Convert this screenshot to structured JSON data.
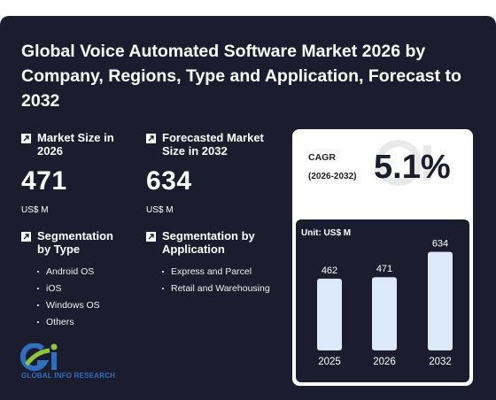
{
  "title": "Global Voice Automated Software Market 2026 by Company, Regions, Type and Application, Forecast to 2032",
  "market_size": {
    "label": "Market Size in 2026",
    "value": "471",
    "unit": "US$ M"
  },
  "forecast_size": {
    "label": "Forecasted Market Size in 2032",
    "value": "634",
    "unit": "US$ M"
  },
  "segmentation_type": {
    "label": "Segmentation by Type",
    "items": [
      "Android OS",
      "iOS",
      "Windows OS",
      "Others"
    ]
  },
  "segmentation_application": {
    "label": "Segmentation by Application",
    "items": [
      "Express and Parcel",
      "Retail and Warehousing"
    ]
  },
  "cagr": {
    "label": "CAGR",
    "years": "(2026-2032)",
    "value": "5.1%"
  },
  "chart_data": {
    "type": "bar",
    "categories": [
      "2025",
      "2026",
      "2032"
    ],
    "values": [
      462,
      471,
      634
    ],
    "unit_label": "Unit: US$ M",
    "ylim": [
      0,
      700
    ],
    "bar_color": "#dce9fb"
  },
  "logo_text": "GLOBAL INFO RESEARCH",
  "colors": {
    "background": "#1b1d2e",
    "accent_blue": "#2f6fc0",
    "accent_green": "#8cc63f"
  }
}
